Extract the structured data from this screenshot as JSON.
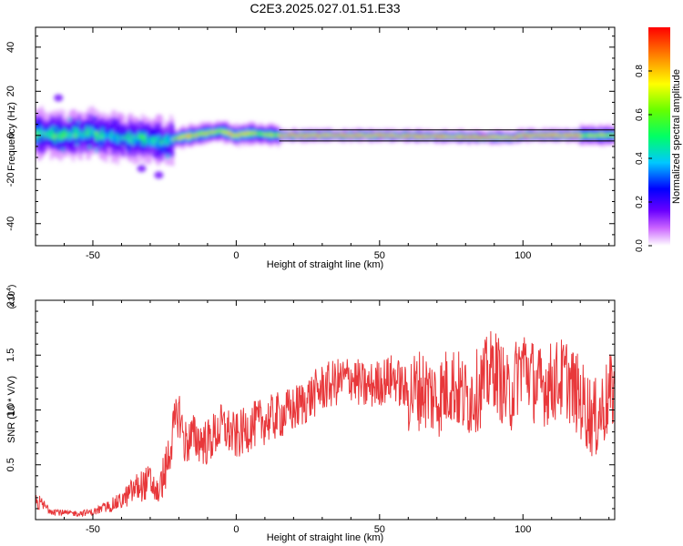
{
  "title": "C2E3.2025.027.01.51.E33",
  "colorbar": {
    "label": "Normalized spectral amplitude",
    "ticks": [
      "0.0",
      "0.2",
      "0.4",
      "0.6",
      "0.8"
    ],
    "tick_values": [
      0.0,
      0.2,
      0.4,
      0.6,
      0.8
    ],
    "range": [
      0,
      1
    ]
  },
  "chart_data": [
    {
      "type": "heatmap",
      "title": "",
      "xlabel": "Height of straight line (km)",
      "ylabel": "Frequency (Hz)",
      "xlim": [
        -70,
        132
      ],
      "ylim": [
        -50,
        49
      ],
      "x_ticks": [
        "-50",
        "0",
        "50",
        "100"
      ],
      "x_tick_values": [
        -50,
        0,
        50,
        100
      ],
      "y_ticks": [
        "40",
        "20",
        "0",
        "-20",
        "-40"
      ],
      "y_tick_values": [
        40,
        20,
        0,
        -20,
        -40
      ],
      "colormap": "rainbow",
      "ridge_frequency": [
        {
          "x": -70,
          "f": 1
        },
        {
          "x": -60,
          "f": 0
        },
        {
          "x": -50,
          "f": 1
        },
        {
          "x": -40,
          "f": -1
        },
        {
          "x": -30,
          "f": -2
        },
        {
          "x": -25,
          "f": -3
        },
        {
          "x": -20,
          "f": -1
        },
        {
          "x": -10,
          "f": 1
        },
        {
          "x": -5,
          "f": 2
        },
        {
          "x": 0,
          "f": 0
        },
        {
          "x": 5,
          "f": 1
        },
        {
          "x": 15,
          "f": 0
        },
        {
          "x": 50,
          "f": 0
        },
        {
          "x": 97,
          "f": -1
        },
        {
          "x": 100,
          "f": 0
        },
        {
          "x": 132,
          "f": 0
        }
      ],
      "horizontal_line_hz": 0,
      "outlier_blobs": [
        {
          "x": -33,
          "f": -15
        },
        {
          "x": -27,
          "f": -18
        },
        {
          "x": -62,
          "f": 17
        }
      ]
    },
    {
      "type": "line",
      "title": "",
      "xlabel": "Height of straight line (km)",
      "ylabel": "SNR (10 * V/V)",
      "multiplier_label": "(x10",
      "multiplier_exp": "4",
      "multiplier_close": ")",
      "xlim": [
        -70,
        132
      ],
      "ylim": [
        0,
        2.0
      ],
      "x_ticks": [
        "-50",
        "0",
        "50",
        "100"
      ],
      "x_tick_values": [
        -50,
        0,
        50,
        100
      ],
      "y_ticks": [
        "0.5",
        "1.0",
        "1.5",
        "2.0"
      ],
      "y_tick_values": [
        0.5,
        1.0,
        1.5,
        2.0
      ],
      "color": "#e8383b",
      "series": [
        {
          "x": [
            -70,
            -65,
            -60,
            -55,
            -50,
            -45,
            -40,
            -35,
            -30,
            -27,
            -25,
            -22,
            -20,
            -18,
            -15,
            -10,
            -5,
            0,
            5,
            10,
            15,
            20,
            25,
            30,
            35,
            40,
            45,
            50,
            55,
            60,
            65,
            70,
            75,
            80,
            85,
            90,
            95,
            100,
            105,
            110,
            115,
            120,
            125,
            132
          ],
          "values": [
            0.15,
            0.08,
            0.05,
            0.05,
            0.06,
            0.1,
            0.15,
            0.25,
            0.3,
            0.2,
            0.4,
            0.8,
            1.0,
            0.7,
            0.75,
            0.7,
            0.85,
            0.75,
            0.85,
            0.9,
            0.95,
            1.0,
            1.1,
            1.2,
            1.25,
            1.3,
            1.2,
            1.25,
            1.3,
            1.15,
            1.2,
            1.1,
            1.25,
            1.1,
            1.2,
            1.4,
            1.1,
            1.45,
            1.2,
            1.25,
            1.3,
            1.1,
            0.9,
            1.2
          ]
        }
      ]
    }
  ]
}
